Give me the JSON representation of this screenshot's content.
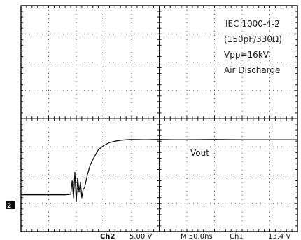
{
  "chart_data": {
    "type": "line",
    "title": "",
    "xlabel": "",
    "ylabel": "",
    "x_divisions": 10,
    "y_divisions": 8,
    "xlim": [
      0,
      10
    ],
    "ylim": [
      0,
      8
    ],
    "grid": true,
    "channel_marker": "2",
    "annotations": [
      "IEC 1000-4-2",
      "(150pF/330Ω)",
      "Vpp=16kV",
      "Air Discharge"
    ],
    "series_label": "Vout",
    "series": [
      {
        "name": "Vout",
        "color": "#111111",
        "x": [
          0,
          0.6,
          1.2,
          1.6,
          1.8,
          1.85,
          1.9,
          1.95,
          2.0,
          2.05,
          2.1,
          2.15,
          2.2,
          2.25,
          2.3,
          2.4,
          2.5,
          2.6,
          2.8,
          3.0,
          3.2,
          3.4,
          3.6,
          3.8,
          4.0,
          4.5,
          5.0,
          5.5,
          6.0,
          7.0,
          8.0,
          9.0,
          10.0
        ],
        "y": [
          1.3,
          1.3,
          1.3,
          1.3,
          1.32,
          1.8,
          1.2,
          2.1,
          1.05,
          1.9,
          1.4,
          1.75,
          1.2,
          1.5,
          1.55,
          2.0,
          2.35,
          2.55,
          2.9,
          3.05,
          3.15,
          3.2,
          3.23,
          3.25,
          3.26,
          3.25,
          3.26,
          3.25,
          3.25,
          3.26,
          3.25,
          3.25,
          3.25
        ]
      }
    ],
    "status_bar": {
      "ch_label": "Ch2",
      "ch_scale": "5.00 V",
      "timebase": "M 50.0ns",
      "trigger": "Ch1",
      "trigger_level": "13.4 V"
    }
  }
}
